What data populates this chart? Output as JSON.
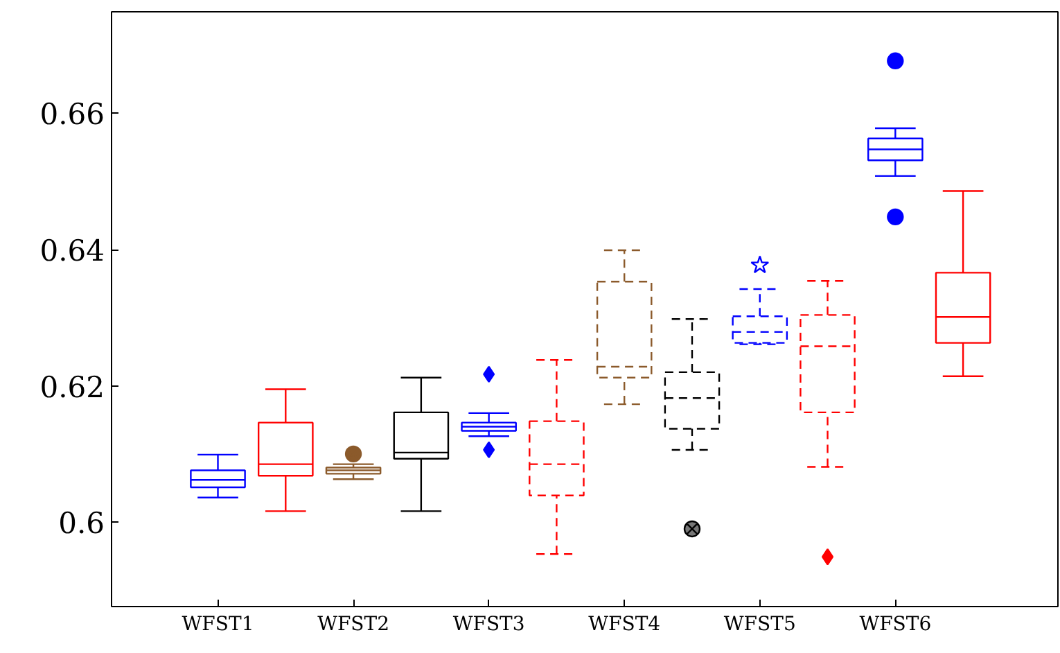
{
  "chart_data": {
    "type": "box",
    "categories": [
      "WFST1",
      null,
      "WFST2",
      null,
      "WFST3",
      null,
      "WFST4",
      null,
      "WFST5",
      null,
      "WFST6",
      null
    ],
    "ylim": [
      0.5876,
      0.6749
    ],
    "yticks": [
      {
        "value": 0.6,
        "label": "0.6"
      },
      0.62,
      0.64,
      0.66
    ],
    "grid": false,
    "series": [
      {
        "color": "#0000ff",
        "line_style": "solid",
        "marker": "none",
        "boxes": [
          {
            "low": 0.6036,
            "q1": 0.6051,
            "median": 0.6062,
            "q3": 0.6076,
            "high": 0.6099
          },
          null,
          null,
          null,
          null,
          null,
          null,
          null,
          null,
          null,
          null,
          null
        ]
      },
      {
        "color": "#ff0000",
        "line_style": "solid",
        "marker": "none",
        "boxes": [
          null,
          {
            "low": 0.6016,
            "q1": 0.6068,
            "median": 0.6085,
            "q3": 0.6146,
            "high": 0.6195
          },
          null,
          null,
          null,
          null,
          null,
          null,
          null,
          null,
          null,
          {
            "low": 0.6214,
            "q1": 0.6263,
            "median": 0.6301,
            "q3": 0.6366,
            "high": 0.6486
          }
        ]
      },
      {
        "color": "#8b5a2b",
        "line_style": "solid",
        "marker": "cross",
        "boxes": [
          null,
          null,
          {
            "low": 0.6063,
            "q1": 0.6071,
            "median": 0.6076,
            "q3": 0.608,
            "high": 0.6085,
            "outliers": [
              0.61
            ]
          },
          null,
          null,
          null,
          null,
          null,
          null,
          null,
          null,
          null
        ]
      },
      {
        "color": "#000000",
        "line_style": "solid",
        "marker": "none",
        "boxes": [
          null,
          null,
          null,
          {
            "low": 0.6016,
            "q1": 0.6093,
            "median": 0.6102,
            "q3": 0.6161,
            "high": 0.6212
          },
          null,
          null,
          null,
          null,
          null,
          null,
          null,
          null
        ]
      },
      {
        "color": "#0000ff",
        "line_style": "solid",
        "marker": "diamond",
        "boxes": [
          null,
          null,
          null,
          null,
          {
            "low": 0.6126,
            "q1": 0.6134,
            "median": 0.614,
            "q3": 0.6146,
            "high": 0.616,
            "outliers": [
              0.6217,
              0.6106
            ]
          },
          null,
          null,
          null,
          null,
          null,
          null,
          null
        ]
      },
      {
        "color": "#ff0000",
        "line_style": "dashed",
        "marker": "diamond",
        "boxes": [
          null,
          null,
          null,
          null,
          null,
          {
            "low": 0.5953,
            "q1": 0.6039,
            "median": 0.6085,
            "q3": 0.6148,
            "high": 0.6238
          },
          null,
          null,
          null,
          {
            "low": 0.6081,
            "q1": 0.6161,
            "median": 0.6258,
            "q3": 0.6304,
            "high": 0.6354,
            "outliers": [
              0.5949
            ]
          },
          null,
          null
        ]
      },
      {
        "color": "#8b5a2b",
        "line_style": "dashed",
        "marker": "none",
        "boxes": [
          null,
          null,
          null,
          null,
          null,
          null,
          {
            "low": 0.6173,
            "q1": 0.6212,
            "median": 0.6228,
            "q3": 0.6353,
            "high": 0.6399
          },
          null,
          null,
          null,
          null,
          null
        ]
      },
      {
        "color": "#000000",
        "line_style": "dashed",
        "marker": "cross",
        "boxes": [
          null,
          null,
          null,
          null,
          null,
          null,
          null,
          {
            "low": 0.6106,
            "q1": 0.6137,
            "median": 0.6182,
            "q3": 0.622,
            "high": 0.6298,
            "outliers": [
              0.599
            ]
          },
          null,
          null,
          null,
          null
        ]
      },
      {
        "color": "#0000ff",
        "line_style": "dashed",
        "marker": "star",
        "boxes": [
          null,
          null,
          null,
          null,
          null,
          null,
          null,
          null,
          {
            "low": 0.6261,
            "q1": 0.6263,
            "median": 0.6279,
            "q3": 0.6302,
            "high": 0.6342,
            "outliers": [
              0.6377
            ]
          },
          null,
          null,
          null
        ]
      },
      {
        "color": "#0000ff",
        "line_style": "solid",
        "marker": "circle",
        "boxes": [
          null,
          null,
          null,
          null,
          null,
          null,
          null,
          null,
          null,
          null,
          {
            "low": 0.6508,
            "q1": 0.6531,
            "median": 0.6547,
            "q3": 0.6563,
            "high": 0.6578,
            "outliers": [
              0.6677,
              0.6448
            ]
          },
          null
        ]
      }
    ]
  }
}
